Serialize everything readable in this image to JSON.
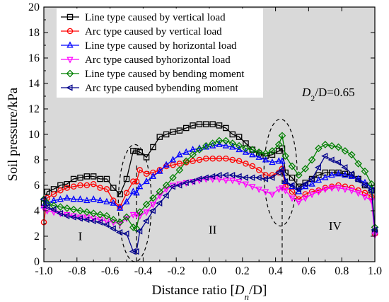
{
  "chart_data": {
    "type": "line",
    "title": "",
    "xlabel": "Distance ratio [D_n/D]",
    "xlabel_parts": {
      "lead": "Distance ratio [",
      "main": "D",
      "sub": "n",
      "tail": "/D]"
    },
    "ylabel": "Soil pressure/kPa",
    "xlim": [
      -1.0,
      1.0
    ],
    "ylim": [
      0,
      20
    ],
    "xticks": [
      "-1.0",
      "-0.8",
      "-0.6",
      "-0.4",
      "-0.2",
      "0.0",
      "0.2",
      "0.4",
      "0.6",
      "0.8",
      "1.0"
    ],
    "yticks": [
      "0",
      "2",
      "4",
      "6",
      "8",
      "10",
      "12",
      "14",
      "16",
      "18",
      "20"
    ],
    "background": "#d9d9d9",
    "legend_position": "top-left",
    "annotation": {
      "main": "D",
      "sub": "2",
      "tail": "/D=0.65"
    },
    "region_labels": [
      "I",
      "II",
      "IV"
    ],
    "dashed_lines_x": [
      -0.44,
      0.44
    ],
    "dashed_ellipses": [
      {
        "cx": -0.45,
        "cy": 4.6,
        "rx": 0.1,
        "ry": 4.6
      },
      {
        "cx": 0.43,
        "cy": 7.0,
        "rx": 0.1,
        "ry": 4.2
      }
    ],
    "series": [
      {
        "name": "Line type caused by vertical load",
        "color": "#000000",
        "marker": "square",
        "x": [
          -1.0,
          -0.98,
          -0.94,
          -0.9,
          -0.86,
          -0.82,
          -0.78,
          -0.74,
          -0.7,
          -0.66,
          -0.62,
          -0.58,
          -0.54,
          -0.5,
          -0.46,
          -0.44,
          -0.42,
          -0.38,
          -0.34,
          -0.3,
          -0.26,
          -0.22,
          -0.18,
          -0.14,
          -0.1,
          -0.06,
          -0.02,
          0.02,
          0.06,
          0.1,
          0.14,
          0.18,
          0.22,
          0.26,
          0.3,
          0.34,
          0.38,
          0.42,
          0.44,
          0.46,
          0.5,
          0.54,
          0.58,
          0.62,
          0.66,
          0.7,
          0.74,
          0.78,
          0.82,
          0.86,
          0.9,
          0.94,
          0.98,
          1.0
        ],
        "y": [
          4.6,
          5.5,
          5.7,
          6.0,
          6.1,
          6.5,
          6.6,
          6.7,
          6.7,
          6.5,
          6.5,
          5.8,
          5.3,
          6.5,
          8.7,
          8.7,
          8.6,
          8.2,
          9.0,
          9.8,
          10.0,
          10.2,
          10.3,
          10.5,
          10.7,
          10.8,
          10.8,
          10.8,
          10.7,
          10.5,
          10.0,
          9.8,
          9.3,
          8.8,
          8.5,
          8.3,
          8.4,
          8.7,
          8.9,
          7.0,
          6.6,
          5.9,
          6.2,
          6.5,
          6.8,
          7.0,
          7.0,
          7.0,
          6.9,
          6.8,
          6.5,
          6.0,
          5.6,
          2.3
        ]
      },
      {
        "name": "Arc type caused by vertical load",
        "color": "#ff0000",
        "marker": "circle",
        "x": [
          -1.0,
          -0.98,
          -0.94,
          -0.9,
          -0.86,
          -0.82,
          -0.78,
          -0.74,
          -0.7,
          -0.66,
          -0.62,
          -0.58,
          -0.54,
          -0.5,
          -0.46,
          -0.44,
          -0.42,
          -0.38,
          -0.34,
          -0.3,
          -0.26,
          -0.22,
          -0.18,
          -0.14,
          -0.1,
          -0.06,
          -0.02,
          0.02,
          0.06,
          0.1,
          0.14,
          0.18,
          0.22,
          0.26,
          0.3,
          0.34,
          0.38,
          0.42,
          0.44,
          0.46,
          0.5,
          0.54,
          0.58,
          0.62,
          0.66,
          0.7,
          0.74,
          0.78,
          0.82,
          0.86,
          0.9,
          0.94,
          0.98,
          1.0
        ],
        "y": [
          3.1,
          5.0,
          5.3,
          5.6,
          5.8,
          5.9,
          6.0,
          6.0,
          6.1,
          5.8,
          5.7,
          4.8,
          4.3,
          5.4,
          6.3,
          6.3,
          7.2,
          6.9,
          7.0,
          7.2,
          7.5,
          7.6,
          7.7,
          7.8,
          7.9,
          8.0,
          8.1,
          8.1,
          8.1,
          8.1,
          8.0,
          7.9,
          7.7,
          7.5,
          7.2,
          6.8,
          6.8,
          7.0,
          7.3,
          5.9,
          5.5,
          4.9,
          5.3,
          5.5,
          5.6,
          5.8,
          5.9,
          6.0,
          5.9,
          5.8,
          5.6,
          5.4,
          5.1,
          2.2
        ]
      },
      {
        "name": "Line type caused by horizontal load",
        "color": "#0000ff",
        "marker": "triangle-up",
        "x": [
          -1.0,
          -0.98,
          -0.94,
          -0.9,
          -0.86,
          -0.82,
          -0.78,
          -0.74,
          -0.7,
          -0.66,
          -0.62,
          -0.58,
          -0.54,
          -0.5,
          -0.46,
          -0.44,
          -0.42,
          -0.38,
          -0.34,
          -0.3,
          -0.26,
          -0.22,
          -0.18,
          -0.14,
          -0.1,
          -0.06,
          -0.02,
          0.02,
          0.06,
          0.1,
          0.14,
          0.18,
          0.22,
          0.26,
          0.3,
          0.34,
          0.38,
          0.42,
          0.44,
          0.46,
          0.5,
          0.54,
          0.58,
          0.62,
          0.66,
          0.7,
          0.74,
          0.78,
          0.82,
          0.86,
          0.9,
          0.94,
          0.98,
          1.0
        ],
        "y": [
          4.4,
          4.6,
          4.8,
          4.9,
          5.0,
          4.9,
          4.9,
          4.8,
          4.9,
          4.8,
          4.7,
          4.6,
          4.2,
          4.7,
          5.5,
          5.4,
          5.9,
          6.3,
          6.7,
          7.1,
          7.6,
          8.0,
          8.4,
          8.6,
          8.8,
          8.9,
          9.0,
          9.1,
          9.2,
          9.1,
          9.0,
          8.8,
          8.6,
          8.4,
          8.2,
          8.0,
          7.8,
          7.9,
          7.9,
          6.3,
          5.9,
          5.5,
          5.9,
          6.1,
          6.4,
          6.6,
          6.8,
          6.9,
          6.8,
          6.7,
          6.5,
          6.2,
          5.8,
          2.4
        ]
      },
      {
        "name": "Arc type caused byhorizontal load",
        "color": "#ff00ff",
        "marker": "triangle-down",
        "x": [
          -1.0,
          -0.98,
          -0.94,
          -0.9,
          -0.86,
          -0.82,
          -0.78,
          -0.74,
          -0.7,
          -0.66,
          -0.62,
          -0.58,
          -0.54,
          -0.5,
          -0.46,
          -0.44,
          -0.42,
          -0.38,
          -0.34,
          -0.3,
          -0.26,
          -0.22,
          -0.18,
          -0.14,
          -0.1,
          -0.06,
          -0.02,
          0.02,
          0.06,
          0.1,
          0.14,
          0.18,
          0.22,
          0.26,
          0.3,
          0.34,
          0.38,
          0.42,
          0.44,
          0.46,
          0.5,
          0.54,
          0.58,
          0.62,
          0.66,
          0.7,
          0.74,
          0.78,
          0.82,
          0.86,
          0.9,
          0.94,
          0.98,
          1.0
        ],
        "y": [
          4.2,
          4.0,
          3.9,
          3.8,
          3.7,
          3.6,
          3.5,
          3.5,
          3.4,
          3.3,
          3.2,
          3.1,
          3.0,
          3.4,
          3.7,
          3.7,
          3.6,
          3.9,
          4.5,
          5.2,
          5.7,
          6.0,
          6.1,
          6.2,
          6.3,
          6.4,
          6.5,
          6.5,
          6.5,
          6.4,
          6.4,
          6.3,
          6.1,
          5.9,
          5.7,
          5.5,
          5.3,
          5.7,
          5.8,
          5.6,
          5.0,
          4.7,
          5.0,
          5.3,
          5.5,
          5.7,
          5.8,
          5.8,
          5.7,
          5.6,
          5.4,
          5.1,
          4.8,
          2.1
        ]
      },
      {
        "name": "Line type caused by bending moment",
        "color": "#008000",
        "marker": "diamond",
        "x": [
          -1.0,
          -0.98,
          -0.94,
          -0.9,
          -0.86,
          -0.82,
          -0.78,
          -0.74,
          -0.7,
          -0.66,
          -0.62,
          -0.58,
          -0.54,
          -0.5,
          -0.46,
          -0.44,
          -0.42,
          -0.38,
          -0.34,
          -0.3,
          -0.26,
          -0.22,
          -0.18,
          -0.14,
          -0.1,
          -0.06,
          -0.02,
          0.02,
          0.06,
          0.1,
          0.14,
          0.18,
          0.22,
          0.26,
          0.3,
          0.34,
          0.38,
          0.42,
          0.44,
          0.46,
          0.5,
          0.54,
          0.58,
          0.62,
          0.66,
          0.7,
          0.74,
          0.78,
          0.82,
          0.86,
          0.9,
          0.94,
          0.98,
          1.0
        ],
        "y": [
          4.9,
          4.6,
          4.4,
          4.3,
          4.2,
          4.1,
          4.0,
          3.9,
          3.8,
          3.7,
          3.6,
          3.3,
          3.1,
          3.5,
          2.7,
          2.6,
          3.9,
          4.5,
          5.0,
          5.5,
          6.0,
          6.6,
          7.2,
          7.9,
          8.4,
          8.8,
          9.1,
          9.3,
          9.5,
          9.5,
          9.3,
          9.1,
          8.9,
          8.8,
          8.6,
          8.5,
          8.7,
          9.2,
          9.9,
          8.3,
          7.5,
          6.8,
          7.3,
          8.0,
          8.9,
          9.2,
          9.1,
          9.0,
          8.7,
          8.4,
          7.7,
          7.1,
          6.1,
          2.7
        ]
      },
      {
        "name": "Arc type caused bybending moment",
        "color": "#00008b",
        "marker": "triangle-left",
        "x": [
          -1.0,
          -0.98,
          -0.94,
          -0.9,
          -0.86,
          -0.82,
          -0.78,
          -0.74,
          -0.7,
          -0.66,
          -0.62,
          -0.58,
          -0.54,
          -0.5,
          -0.46,
          -0.44,
          -0.42,
          -0.38,
          -0.34,
          -0.3,
          -0.26,
          -0.22,
          -0.18,
          -0.14,
          -0.1,
          -0.06,
          -0.02,
          0.02,
          0.06,
          0.1,
          0.14,
          0.18,
          0.22,
          0.26,
          0.3,
          0.34,
          0.38,
          0.42,
          0.44,
          0.46,
          0.5,
          0.54,
          0.58,
          0.62,
          0.66,
          0.7,
          0.74,
          0.78,
          0.82,
          0.86,
          0.9,
          0.94,
          0.98,
          1.0
        ],
        "y": [
          4.9,
          4.3,
          4.1,
          3.8,
          3.6,
          3.5,
          3.4,
          3.3,
          3.2,
          3.1,
          2.9,
          2.6,
          2.3,
          2.2,
          0.8,
          0.8,
          2.4,
          3.2,
          4.0,
          4.6,
          5.2,
          5.9,
          6.0,
          6.2,
          6.3,
          6.5,
          6.6,
          6.7,
          6.8,
          6.8,
          6.8,
          6.7,
          6.6,
          6.6,
          6.6,
          6.5,
          6.6,
          7.0,
          7.2,
          6.3,
          6.0,
          5.7,
          6.1,
          6.5,
          7.4,
          8.3,
          8.0,
          7.8,
          7.4,
          6.9,
          6.4,
          6.0,
          5.6,
          2.5
        ]
      }
    ]
  }
}
